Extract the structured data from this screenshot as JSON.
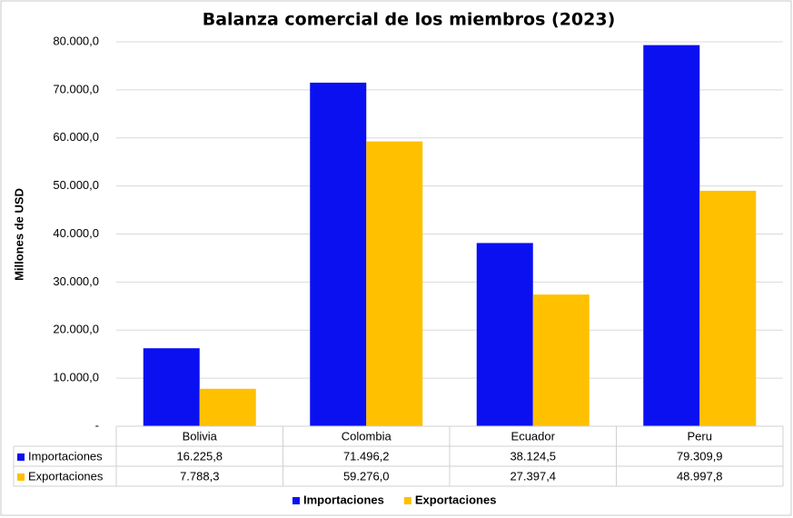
{
  "chart_data": {
    "type": "bar",
    "title": "Balanza comercial de los miembros (2023)",
    "y_label": "Millones de USD",
    "categories": [
      "Bolivia",
      "Colombia",
      "Ecuador",
      "Peru"
    ],
    "series": [
      {
        "name": "Importaciones",
        "color": "#0a10f0",
        "values": [
          16225.8,
          71496.2,
          38124.5,
          79309.9
        ],
        "value_labels": [
          "16.225,8",
          "71.496,2",
          "38.124,5",
          "79.309,9"
        ]
      },
      {
        "name": "Exportaciones",
        "color": "#ffc000",
        "values": [
          7788.3,
          59276.0,
          27397.4,
          48997.8
        ],
        "value_labels": [
          "7.788,3",
          "59.276,0",
          "27.397,4",
          "48.997,8"
        ]
      }
    ],
    "ylim": [
      0,
      80000
    ],
    "yticks": [
      {
        "value": 0,
        "label": "-"
      },
      {
        "value": 10000,
        "label": "10.000,0"
      },
      {
        "value": 20000,
        "label": "20.000,0"
      },
      {
        "value": 30000,
        "label": "30.000,0"
      },
      {
        "value": 40000,
        "label": "40.000,0"
      },
      {
        "value": 50000,
        "label": "50.000,0"
      },
      {
        "value": 60000,
        "label": "60.000,0"
      },
      {
        "value": 70000,
        "label": "70.000,0"
      },
      {
        "value": 80000,
        "label": "80.000,0"
      }
    ],
    "grid": true
  }
}
